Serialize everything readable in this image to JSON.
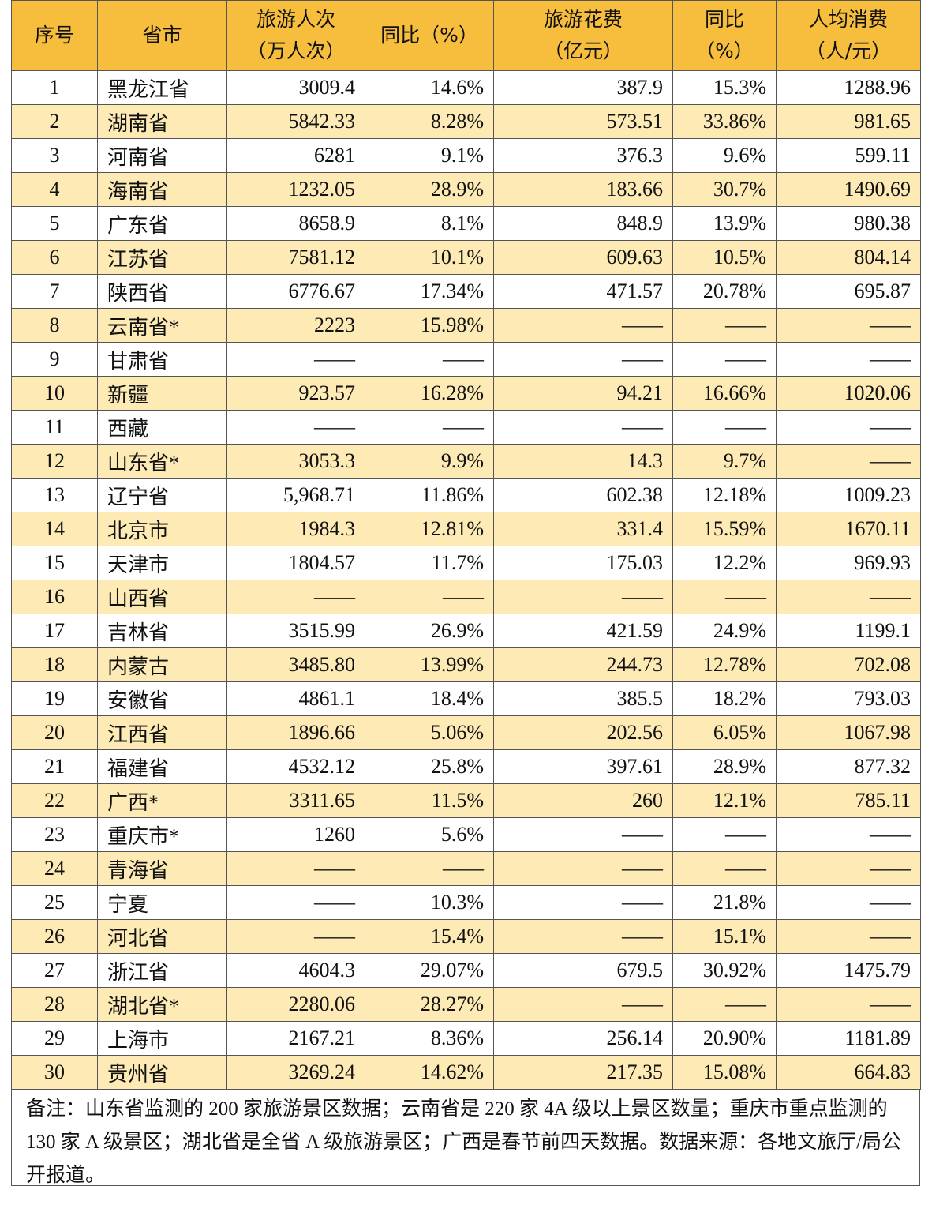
{
  "table": {
    "header": [
      [
        "序号"
      ],
      [
        "省市"
      ],
      [
        "旅游人次",
        "（万人次）"
      ],
      [
        "同比（%）"
      ],
      [
        "旅游花费",
        "（亿元）"
      ],
      [
        "同比",
        "（%）"
      ],
      [
        "人均消费",
        "（人/元）"
      ]
    ],
    "rows": [
      [
        "1",
        "黑龙江省",
        "3009.4",
        "14.6%",
        "387.9",
        "15.3%",
        "1288.96"
      ],
      [
        "2",
        "湖南省",
        "5842.33",
        "8.28%",
        "573.51",
        "33.86%",
        "981.65"
      ],
      [
        "3",
        "河南省",
        "6281",
        "9.1%",
        "376.3",
        "9.6%",
        "599.11"
      ],
      [
        "4",
        "海南省",
        "1232.05",
        "28.9%",
        "183.66",
        "30.7%",
        "1490.69"
      ],
      [
        "5",
        "广东省",
        "8658.9",
        "8.1%",
        "848.9",
        "13.9%",
        "980.38"
      ],
      [
        "6",
        "江苏省",
        "7581.12",
        "10.1%",
        "609.63",
        "10.5%",
        "804.14"
      ],
      [
        "7",
        "陕西省",
        "6776.67",
        "17.34%",
        "471.57",
        "20.78%",
        "695.87"
      ],
      [
        "8",
        "云南省*",
        "2223",
        "15.98%",
        "——",
        "——",
        "——"
      ],
      [
        "9",
        "甘肃省",
        "——",
        "——",
        "——",
        "——",
        "——"
      ],
      [
        "10",
        "新疆",
        "923.57",
        "16.28%",
        "94.21",
        "16.66%",
        "1020.06"
      ],
      [
        "11",
        "西藏",
        "——",
        "——",
        "——",
        "——",
        "——"
      ],
      [
        "12",
        "山东省*",
        "3053.3",
        "9.9%",
        "14.3",
        "9.7%",
        "——"
      ],
      [
        "13",
        "辽宁省",
        "5,968.71",
        "11.86%",
        "602.38",
        "12.18%",
        "1009.23"
      ],
      [
        "14",
        "北京市",
        "1984.3",
        "12.81%",
        "331.4",
        "15.59%",
        "1670.11"
      ],
      [
        "15",
        "天津市",
        "1804.57",
        "11.7%",
        "175.03",
        "12.2%",
        "969.93"
      ],
      [
        "16",
        "山西省",
        "——",
        "——",
        "——",
        "——",
        "——"
      ],
      [
        "17",
        "吉林省",
        "3515.99",
        "26.9%",
        "421.59",
        "24.9%",
        "1199.1"
      ],
      [
        "18",
        "内蒙古",
        "3485.80",
        "13.99%",
        "244.73",
        "12.78%",
        "702.08"
      ],
      [
        "19",
        "安徽省",
        "4861.1",
        "18.4%",
        "385.5",
        "18.2%",
        "793.03"
      ],
      [
        "20",
        "江西省",
        "1896.66",
        "5.06%",
        "202.56",
        "6.05%",
        "1067.98"
      ],
      [
        "21",
        "福建省",
        "4532.12",
        "25.8%",
        "397.61",
        "28.9%",
        "877.32"
      ],
      [
        "22",
        "广西*",
        "3311.65",
        "11.5%",
        "260",
        "12.1%",
        "785.11"
      ],
      [
        "23",
        "重庆市*",
        "1260",
        "5.6%",
        "——",
        "——",
        "——"
      ],
      [
        "24",
        "青海省",
        "——",
        "——",
        "——",
        "——",
        "——"
      ],
      [
        "25",
        "宁夏",
        "——",
        "10.3%",
        "——",
        "21.8%",
        "——"
      ],
      [
        "26",
        "河北省",
        "——",
        "15.4%",
        "——",
        "15.1%",
        "——"
      ],
      [
        "27",
        "浙江省",
        "4604.3",
        "29.07%",
        "679.5",
        "30.92%",
        "1475.79"
      ],
      [
        "28",
        "湖北省*",
        "2280.06",
        "28.27%",
        "——",
        "——",
        "——"
      ],
      [
        "29",
        "上海市",
        "2167.21",
        "8.36%",
        "256.14",
        "20.90%",
        "1181.89"
      ],
      [
        "30",
        "贵州省",
        "3269.24",
        "14.62%",
        "217.35",
        "15.08%",
        "664.83"
      ]
    ],
    "note": "备注：山东省监测的 200 家旅游景区数据；云南省是 220 家 4A 级以上景区数量；重庆市重点监测的 130 家 A 级景区；湖北省是全省 A 级旅游景区；广西是春节前四天数据。数据来源：各地文旅厅/局公开报道。"
  }
}
